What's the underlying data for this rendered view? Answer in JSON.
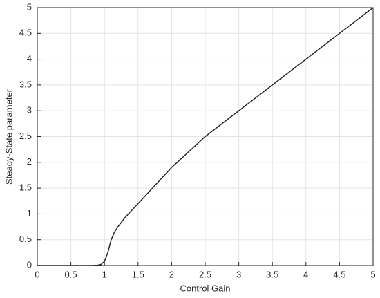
{
  "chart_data": {
    "type": "line",
    "xlabel": "Control Gain",
    "ylabel": "Steady-State parameter",
    "x": [
      0,
      0.5,
      0.8,
      0.9,
      0.95,
      1.0,
      1.05,
      1.1,
      1.15,
      1.2,
      1.3,
      1.4,
      1.5,
      1.75,
      2,
      2.5,
      3,
      3.5,
      4,
      4.5,
      5
    ],
    "series": [
      {
        "color": "#262626",
        "values": [
          0,
          0,
          0,
          0.005,
          0.02,
          0.08,
          0.25,
          0.5,
          0.65,
          0.75,
          0.92,
          1.06,
          1.2,
          1.55,
          1.9,
          2.5,
          3.0,
          3.5,
          4.0,
          4.5,
          5
        ]
      }
    ],
    "xlim": [
      0,
      5
    ],
    "ylim": [
      0,
      5
    ],
    "xticks": [
      0,
      0.5,
      1,
      1.5,
      2,
      2.5,
      3,
      3.5,
      4,
      4.5,
      5
    ],
    "yticks": [
      0,
      0.5,
      1,
      1.5,
      2,
      2.5,
      3,
      3.5,
      4,
      4.5,
      5
    ],
    "grid": true
  }
}
